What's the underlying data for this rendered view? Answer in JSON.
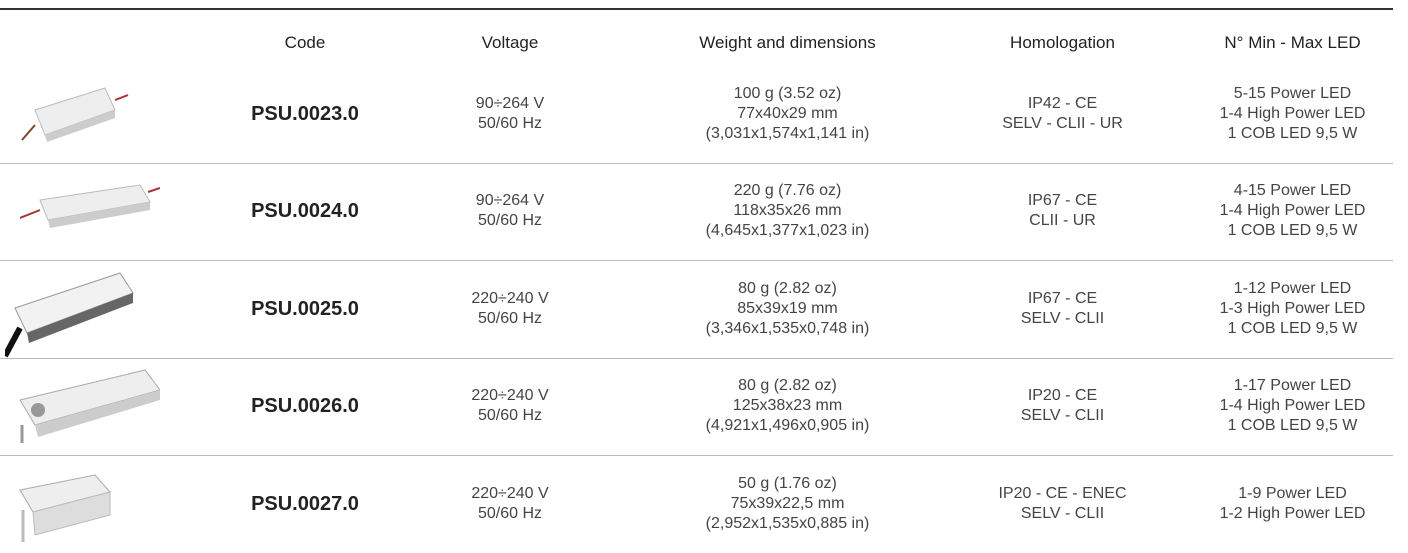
{
  "table": {
    "headers": [
      "Code",
      "Voltage",
      "Weight and dimensions",
      "Homologation",
      "N° Min - Max LED"
    ],
    "rows": [
      {
        "code": "PSU.0023.0",
        "voltage": [
          "90÷264 V",
          "50/60 Hz"
        ],
        "weight": [
          "100 g (3.52 oz)",
          "77x40x29 mm",
          "(3,031x1,574x1,141 in)"
        ],
        "homologation": [
          "IP42 - CE",
          "SELV - CLII - UR"
        ],
        "led": [
          "5-15 Power LED",
          "1-4 High Power LED",
          "1 COB LED 9,5 W"
        ]
      },
      {
        "code": "PSU.0024.0",
        "voltage": [
          "90÷264 V",
          "50/60 Hz"
        ],
        "weight": [
          "220 g (7.76 oz)",
          "118x35x26 mm",
          "(4,645x1,377x1,023 in)"
        ],
        "homologation": [
          "IP67 - CE",
          "CLII - UR"
        ],
        "led": [
          "4-15 Power LED",
          "1-4 High Power LED",
          "1 COB LED 9,5 W"
        ]
      },
      {
        "code": "PSU.0025.0",
        "voltage": [
          "220÷240 V",
          "50/60 Hz"
        ],
        "weight": [
          "80 g (2.82 oz)",
          "85x39x19 mm",
          "(3,346x1,535x0,748 in)"
        ],
        "homologation": [
          "IP67 - CE",
          "SELV - CLII"
        ],
        "led": [
          "1-12 Power LED",
          "1-3 High Power LED",
          "1 COB LED 9,5 W"
        ]
      },
      {
        "code": "PSU.0026.0",
        "voltage": [
          "220÷240 V",
          "50/60 Hz"
        ],
        "weight": [
          "80 g (2.82 oz)",
          "125x38x23 mm",
          "(4,921x1,496x0,905 in)"
        ],
        "homologation": [
          "IP20 - CE",
          "SELV - CLII"
        ],
        "led": [
          "1-17 Power LED",
          "1-4 High Power LED",
          "1 COB LED 9,5 W"
        ]
      },
      {
        "code": "PSU.0027.0",
        "voltage": [
          "220÷240 V",
          "50/60 Hz"
        ],
        "weight": [
          "50 g (1.76 oz)",
          "75x39x22,5 mm",
          "(2,952x1,535x0,885 in)"
        ],
        "homologation": [
          "IP20 - CE - ENEC",
          "SELV - CLII"
        ],
        "led": [
          "1-9 Power LED",
          "1-2 High Power LED"
        ]
      }
    ]
  }
}
